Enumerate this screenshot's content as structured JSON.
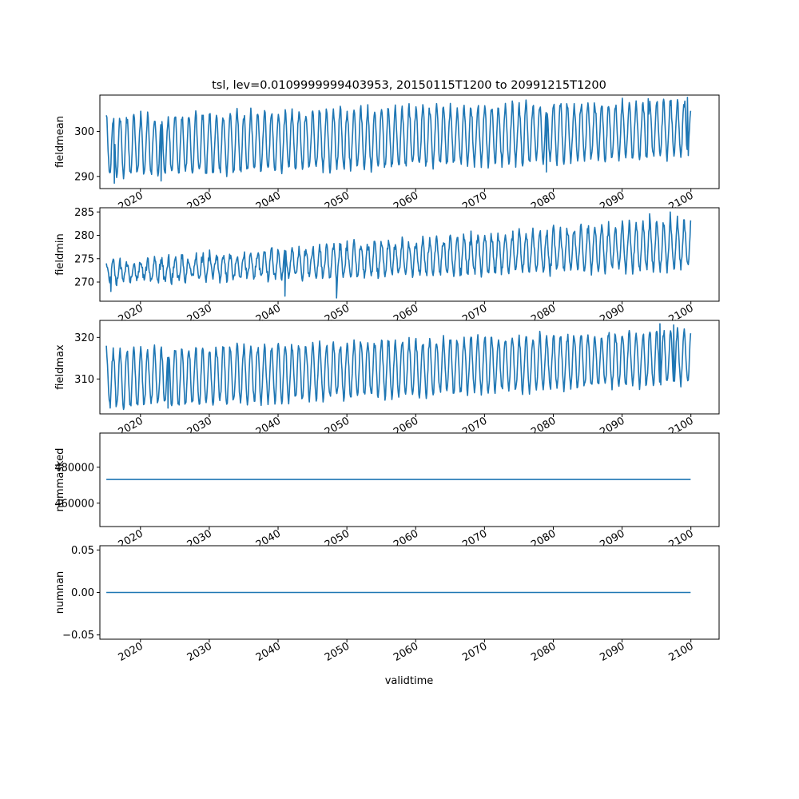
{
  "title": "tsl, lev=0.0109999999403953, 20150115T1200 to 20991215T1200",
  "x_axis_label": "validtime",
  "line_color": "#1f77b4",
  "chart_data": [
    {
      "type": "line",
      "ylabel": "fieldmean",
      "xlim": [
        2014.1,
        2104.1
      ],
      "ylim": [
        287.3,
        308.1
      ],
      "yticks": [
        290,
        300
      ],
      "x_tick_labels": [
        "2020",
        "2030",
        "2040",
        "2050",
        "2060",
        "2070",
        "2080",
        "2090",
        "2100"
      ],
      "annual_cycle": {
        "x_start": 2015.04,
        "x_end": 2099.96,
        "period_years": 1.0,
        "min_start": 290.0,
        "min_end": 294.5,
        "max_start": 303.0,
        "max_end": 306.8
      },
      "series": [
        {
          "values": [
            {
              "x": 2015.04,
              "y": 303.6
            },
            {
              "x": 2016.2,
              "y": 288.5
            },
            {
              "x": 2023.0,
              "y": 289.0
            },
            {
              "x": 2030.0,
              "y": 303.8
            },
            {
              "x": 2047.0,
              "y": 305.0
            },
            {
              "x": 2079.0,
              "y": 291.0
            },
            {
              "x": 2093.8,
              "y": 307.3
            },
            {
              "x": 2099.5,
              "y": 307.6
            },
            {
              "x": 2099.96,
              "y": 304.6
            }
          ]
        }
      ]
    },
    {
      "type": "line",
      "ylabel": "fieldmin",
      "xlim": [
        2014.1,
        2104.1
      ],
      "ylim": [
        265.9,
        285.9
      ],
      "yticks": [
        270,
        275,
        280,
        285
      ],
      "x_tick_labels": [
        "2020",
        "2030",
        "2040",
        "2050",
        "2060",
        "2070",
        "2080",
        "2090",
        "2100"
      ],
      "annual_cycle": {
        "x_start": 2015.04,
        "x_end": 2099.96,
        "period_years": 1.0,
        "min_start": 270.2,
        "min_end": 273.0,
        "max_start": 274.0,
        "max_end": 283.0
      },
      "series": [
        {
          "values": [
            {
              "x": 2015.04,
              "y": 274.0
            },
            {
              "x": 2015.7,
              "y": 268.0
            },
            {
              "x": 2041.0,
              "y": 267.0
            },
            {
              "x": 2048.5,
              "y": 266.6
            },
            {
              "x": 2094.0,
              "y": 284.6
            },
            {
              "x": 2097.0,
              "y": 285.0
            },
            {
              "x": 2099.96,
              "y": 283.2
            }
          ]
        }
      ]
    },
    {
      "type": "line",
      "ylabel": "fieldmax",
      "xlim": [
        2014.1,
        2104.1
      ],
      "ylim": [
        301.6,
        324.1
      ],
      "yticks": [
        310,
        320
      ],
      "x_tick_labels": [
        "2020",
        "2030",
        "2040",
        "2050",
        "2060",
        "2070",
        "2080",
        "2090",
        "2100"
      ],
      "annual_cycle": {
        "x_start": 2015.04,
        "x_end": 2099.96,
        "period_years": 1.0,
        "min_start": 303.2,
        "min_end": 309.0,
        "max_start": 316.5,
        "max_end": 321.5
      },
      "series": [
        {
          "values": [
            {
              "x": 2015.04,
              "y": 318.0
            },
            {
              "x": 2015.6,
              "y": 303.0
            },
            {
              "x": 2024.0,
              "y": 303.0
            },
            {
              "x": 2095.5,
              "y": 323.3
            },
            {
              "x": 2097.5,
              "y": 323.0
            },
            {
              "x": 2099.96,
              "y": 321.0
            }
          ]
        }
      ]
    },
    {
      "type": "line",
      "ylabel": "nummasked",
      "xlim": [
        2014.1,
        2104.1
      ],
      "ylim": [
        447000,
        499000
      ],
      "yticks": [
        460000,
        480000
      ],
      "x_tick_labels": [
        "2020",
        "2030",
        "2040",
        "2050",
        "2060",
        "2070",
        "2080",
        "2090",
        "2100"
      ],
      "series": [
        {
          "values": [
            {
              "x": 2015.04,
              "y": 473200
            },
            {
              "x": 2099.96,
              "y": 473200
            }
          ]
        }
      ]
    },
    {
      "type": "line",
      "ylabel": "numnan",
      "xlim": [
        2014.1,
        2104.1
      ],
      "ylim": [
        -0.055,
        0.055
      ],
      "yticks": [
        -0.05,
        0.0,
        0.05
      ],
      "ytick_labels": [
        "−0.05",
        "0.00",
        "0.05"
      ],
      "x_tick_labels": [
        "2020",
        "2030",
        "2040",
        "2050",
        "2060",
        "2070",
        "2080",
        "2090",
        "2100"
      ],
      "series": [
        {
          "values": [
            {
              "x": 2015.04,
              "y": 0.0
            },
            {
              "x": 2099.96,
              "y": 0.0
            }
          ]
        }
      ]
    }
  ]
}
